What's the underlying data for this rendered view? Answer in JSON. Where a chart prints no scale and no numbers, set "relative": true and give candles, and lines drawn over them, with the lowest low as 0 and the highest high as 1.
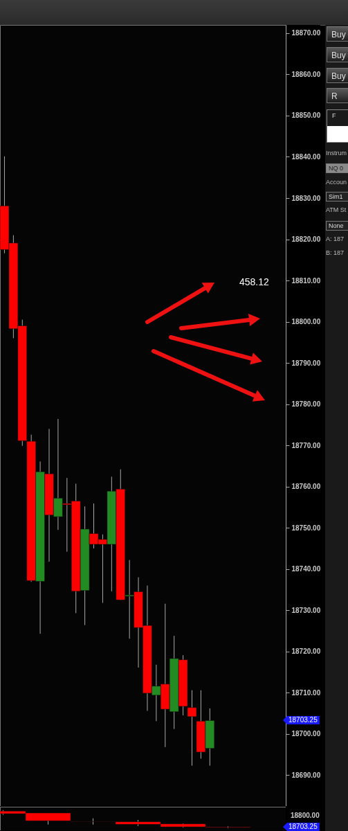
{
  "chart_data": [
    {
      "type": "candlestick",
      "categories": [
        null,
        null,
        null,
        null,
        null,
        null,
        null,
        null,
        null,
        null,
        null,
        null,
        null,
        null,
        null,
        null,
        null,
        null,
        null,
        null,
        null,
        null,
        null,
        null,
        null,
        null,
        null,
        null,
        null,
        null,
        null,
        null
      ],
      "ohlc": [
        [
          18828.1,
          18840.1,
          18816.6,
          18817.5
        ],
        [
          18819.1,
          18821.0,
          18796.0,
          18798.3
        ],
        [
          18799.0,
          18800.5,
          18769.9,
          18771.1
        ],
        [
          18771.0,
          18772.6,
          18736.9,
          18737.2
        ],
        [
          18737.0,
          18766.1,
          18724.3,
          18763.6
        ],
        [
          18763.1,
          18774.0,
          18741.8,
          18753.1
        ],
        [
          18752.7,
          18776.4,
          18749.5,
          18757.2
        ],
        [
          18755.9,
          18762.1,
          18744.2,
          18755.6
        ],
        [
          18756.5,
          18760.7,
          18729.3,
          18734.6
        ],
        [
          18734.8,
          18755.2,
          18726.4,
          18749.7
        ],
        [
          18748.6,
          18755.9,
          18745.0,
          18746.0
        ],
        [
          18747.2,
          18748.4,
          18731.8,
          18746.0
        ],
        [
          18746.0,
          18762.4,
          18734.6,
          18758.9
        ],
        [
          18759.4,
          18764.2,
          18732.5,
          18732.5
        ],
        [
          18733.4,
          18742.2,
          18723.1,
          18733.7
        ],
        [
          18734.5,
          18738.0,
          18716.1,
          18725.8
        ],
        [
          18726.3,
          18736.0,
          18705.6,
          18709.9
        ],
        [
          18709.4,
          18716.8,
          18703.1,
          18711.6
        ],
        [
          18712.1,
          18731.6,
          18696.8,
          18706.0
        ],
        [
          18705.4,
          18723.8,
          18701.2,
          18718.3
        ],
        [
          18718.0,
          18719.1,
          18704.5,
          18706.7
        ],
        [
          18706.4,
          18710.6,
          18692.3,
          18704.2
        ],
        [
          18703.1,
          18710.6,
          18694.0,
          18695.6
        ],
        [
          18696.5,
          18706.2,
          18692.3,
          18703.25
        ],
        null,
        null,
        null,
        null,
        null,
        null,
        null,
        null
      ],
      "colors": [
        "#ff0000",
        "#ff0000",
        "#ff0000",
        "#ff0000",
        "#228b22",
        "#ff0000",
        "#228b22",
        "#ff0000",
        "#ff0000",
        "#228b22",
        "#ff0000",
        "#ff0000",
        "#228b22",
        "#ff0000",
        "#228b22",
        "#ff0000",
        "#ff0000",
        "#228b22",
        "#ff0000",
        "#228b22",
        "#ff0000",
        "#ff0000",
        "#ff0000",
        "#228b22",
        null,
        null,
        null,
        null,
        null,
        null,
        null,
        null
      ],
      "ylim": [
        18682.5,
        18872
      ],
      "yticks": [
        {
          "value": 18690,
          "label": "18690.00"
        },
        {
          "value": 18700,
          "label": "18700.00"
        },
        {
          "value": 18710,
          "label": "18710.00"
        },
        {
          "value": 18720,
          "label": "18720.00"
        },
        {
          "value": 18730,
          "label": "18730.00"
        },
        {
          "value": 18740,
          "label": "18740.00"
        },
        {
          "value": 18750,
          "label": "18750.00"
        },
        {
          "value": 18760,
          "label": "18760.00"
        },
        {
          "value": 18770,
          "label": "18770.00"
        },
        {
          "value": 18780,
          "label": "18780.00"
        },
        {
          "value": 18790,
          "label": "18790.00"
        },
        {
          "value": 18800,
          "label": "18800.00"
        },
        {
          "value": 18810,
          "label": "18810.00"
        },
        {
          "value": 18820,
          "label": "18820.00"
        },
        {
          "value": 18830,
          "label": "18830.00"
        },
        {
          "value": 18840,
          "label": "18840.00"
        },
        {
          "value": 18850,
          "label": "18850.00"
        },
        {
          "value": 18860,
          "label": "18860.00"
        },
        {
          "value": 18870,
          "label": "18870.00"
        }
      ],
      "annotations": [
        "458.12",
        "Buy",
        "Buy",
        "Buy",
        "R",
        "F",
        "Instrum",
        "NQ 0",
        "Accoun",
        "Sim1",
        "ATM St",
        "None",
        "A:  187",
        "B:  187",
        "18703.25"
      ]
    },
    {
      "type": "candlestick",
      "relative": true,
      "categories": [
        null,
        null,
        null,
        null,
        null,
        null
      ],
      "ohlc": [
        [
          0.945,
          1,
          0.74,
          0.801
        ],
        [
          0.842,
          0.842,
          0.192,
          0.404
        ],
        [
          0.363,
          0.541,
          0.192,
          0.356
        ],
        [
          0.349,
          0.452,
          0.116,
          0.205
        ],
        [
          0.233,
          0.26,
          0.027,
          0.062
        ],
        [
          0.062,
          0.103,
          0,
          0.034
        ]
      ],
      "colors": [
        "#ff0000",
        "#ff0000",
        "#ff0000",
        "#ff0000",
        "#ff0000",
        "#ff0000"
      ],
      "annotations": [
        "18800.00",
        "18703.25"
      ]
    }
  ]
}
